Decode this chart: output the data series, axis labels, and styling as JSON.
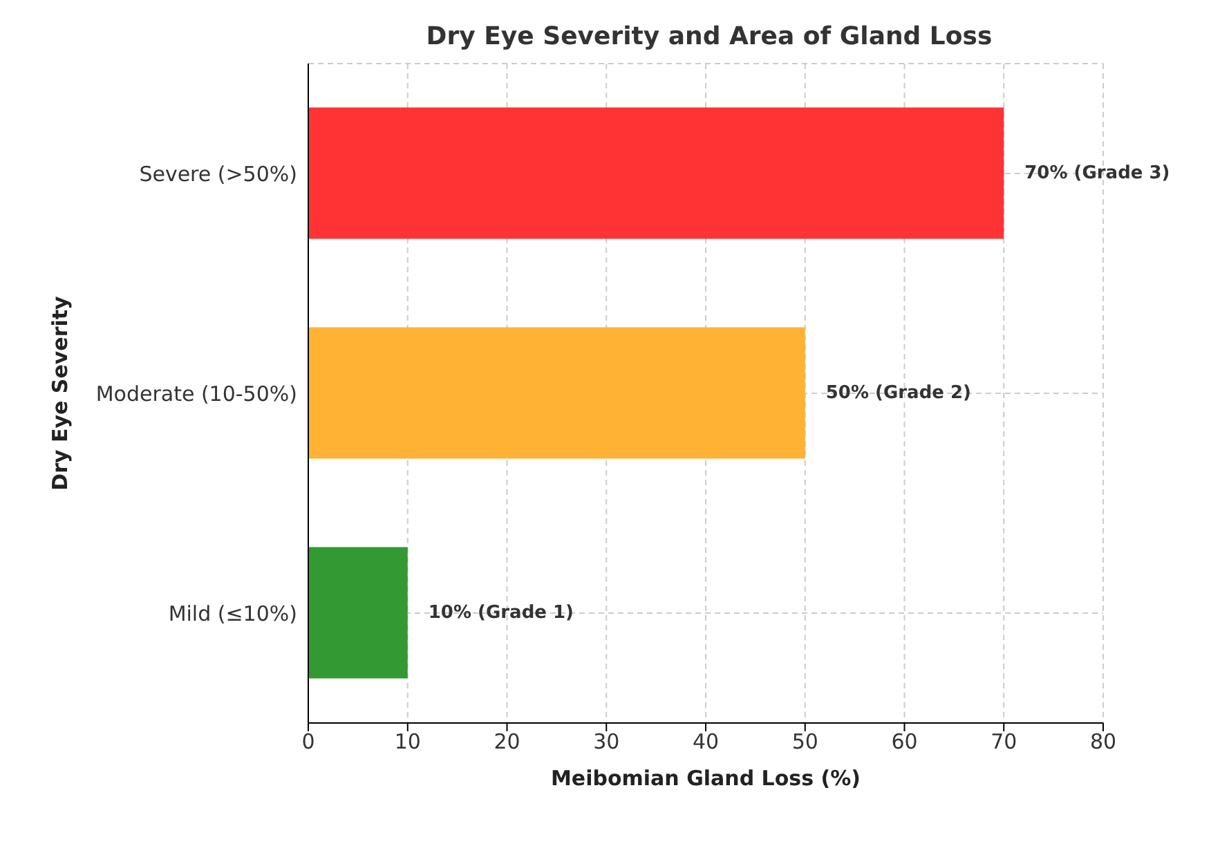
{
  "chart_data": {
    "type": "bar",
    "orientation": "horizontal",
    "title": "Dry Eye Severity and Area of Gland Loss",
    "xlabel": "Meibomian Gland Loss (%)",
    "ylabel": "Dry Eye Severity",
    "categories": [
      "Severe (>50%)",
      "Moderate (10-50%)",
      "Mild (≤10%)"
    ],
    "values": [
      70,
      50,
      10
    ],
    "colors": [
      "#ff3333",
      "#ffb233",
      "#339933"
    ],
    "value_labels": [
      "70% (Grade 3)",
      "50% (Grade 2)",
      "10% (Grade 1)"
    ],
    "xlim": [
      0,
      80
    ],
    "xticks": [
      0,
      10,
      20,
      30,
      40,
      50,
      60,
      70,
      80
    ],
    "grid": true,
    "legend": false
  }
}
